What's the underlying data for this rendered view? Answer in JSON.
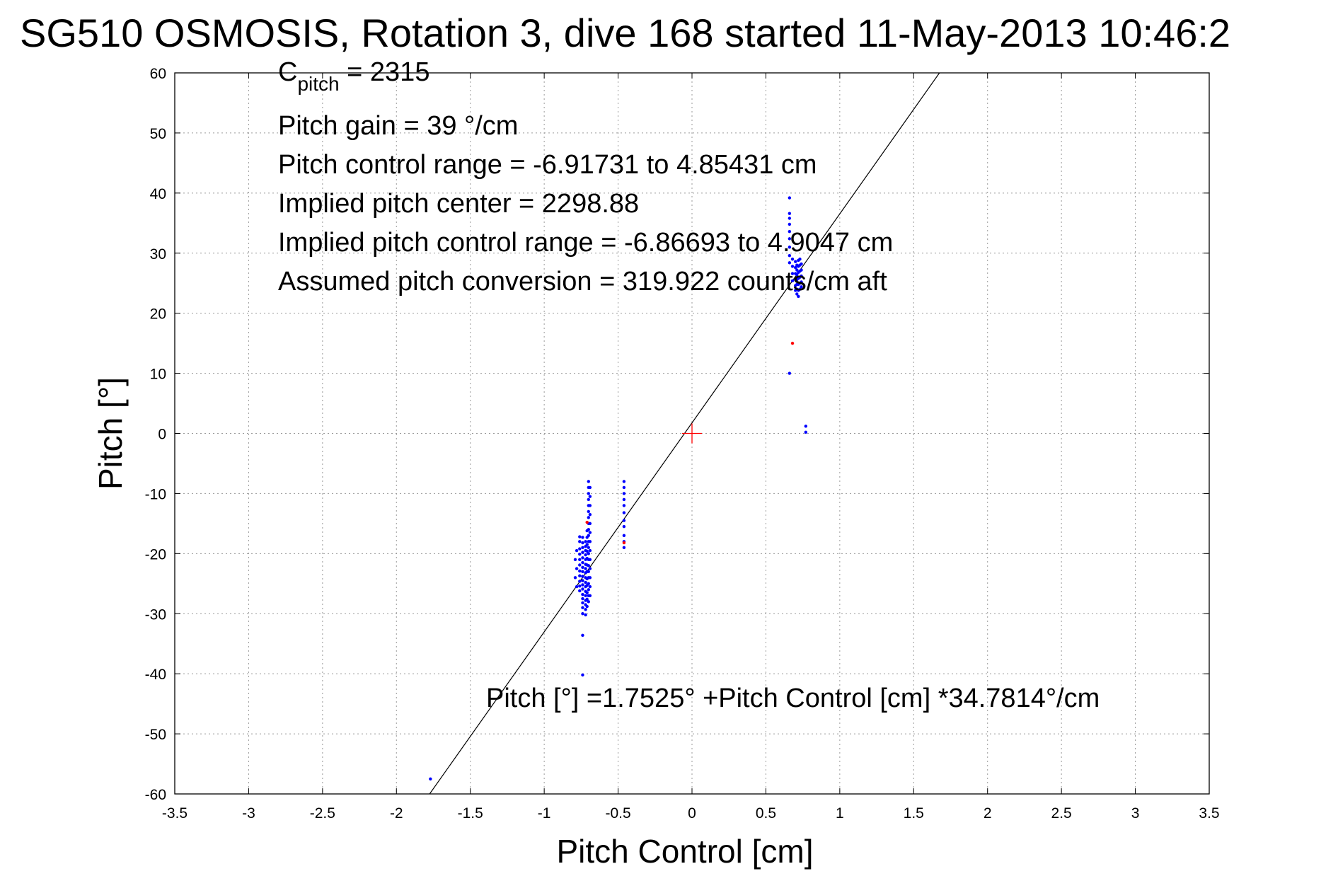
{
  "chart_data": {
    "type": "scatter",
    "title": "SG510 OSMOSIS, Rotation 3, dive 168 started 11-May-2013 10:46:2",
    "xlabel": "Pitch Control [cm]",
    "ylabel": "Pitch [°]",
    "xlim": [
      -3.5,
      3.5
    ],
    "ylim": [
      -60,
      60
    ],
    "xticks": [
      -3.5,
      -3,
      -2.5,
      -2,
      -1.5,
      -1,
      -0.5,
      0,
      0.5,
      1,
      1.5,
      2,
      2.5,
      3,
      3.5
    ],
    "yticks": [
      -60,
      -50,
      -40,
      -30,
      -20,
      -10,
      0,
      10,
      20,
      30,
      40,
      50,
      60
    ],
    "xtick_labels": [
      "-3.5",
      "-3",
      "-2.5",
      "-2",
      "-1.5",
      "-1",
      "-0.5",
      "0",
      "0.5",
      "1",
      "1.5",
      "2",
      "2.5",
      "3",
      "3.5"
    ],
    "ytick_labels": [
      "-60",
      "-50",
      "-40",
      "-30",
      "-20",
      "-10",
      "0",
      "10",
      "20",
      "30",
      "40",
      "50",
      "60"
    ],
    "grid": true,
    "annotations": {
      "cpitch_main": "C",
      "cpitch_sub": "pitch",
      "cpitch_value": " = 2315",
      "lines": [
        "Pitch gain = 39 °/cm",
        "Pitch control range = -6.91731 to 4.85431 cm",
        "Implied pitch center = 2298.88",
        "Implied pitch control range = -6.86693 to 4.9047 cm",
        "Assumed pitch conversion = 319.922 counts/cm aft"
      ],
      "fit_equation": "Pitch [°] =1.7525° +Pitch Control [cm] *34.7814°/cm"
    },
    "fit_line": {
      "intercept": 1.7525,
      "slope": 34.7814,
      "color": "#000000"
    },
    "origin_marker": {
      "x": 0,
      "y": 0,
      "color": "#ff0000"
    },
    "colors": {
      "main": "#0000ff",
      "flagged": "#ff0000"
    },
    "series": [
      {
        "color": "#0000ff",
        "points": [
          [
            -1.77,
            -57.5
          ],
          [
            -0.74,
            -40.2
          ],
          [
            -0.74,
            -33.6
          ],
          [
            -0.74,
            -30.0
          ],
          [
            -0.74,
            -29.0
          ],
          [
            -0.74,
            -28.2
          ],
          [
            -0.74,
            -27.5
          ],
          [
            -0.74,
            -26.8
          ],
          [
            -0.74,
            -25.9
          ],
          [
            -0.74,
            -25.2
          ],
          [
            -0.74,
            -24.5
          ],
          [
            -0.74,
            -23.8
          ],
          [
            -0.74,
            -23.0
          ],
          [
            -0.74,
            -22.3
          ],
          [
            -0.74,
            -21.5
          ],
          [
            -0.74,
            -20.7
          ],
          [
            -0.74,
            -19.8
          ],
          [
            -0.74,
            -19.0
          ],
          [
            -0.74,
            -18.2
          ],
          [
            -0.74,
            -17.3
          ],
          [
            -0.76,
            -26.2
          ],
          [
            -0.76,
            -25.4
          ],
          [
            -0.76,
            -24.6
          ],
          [
            -0.76,
            -23.7
          ],
          [
            -0.76,
            -22.9
          ],
          [
            -0.76,
            -21.9
          ],
          [
            -0.76,
            -21.0
          ],
          [
            -0.76,
            -20.1
          ],
          [
            -0.76,
            -19.2
          ],
          [
            -0.76,
            -18.0
          ],
          [
            -0.76,
            -17.2
          ],
          [
            -0.72,
            -30.2
          ],
          [
            -0.72,
            -29.3
          ],
          [
            -0.72,
            -28.5
          ],
          [
            -0.72,
            -27.8
          ],
          [
            -0.72,
            -27.0
          ],
          [
            -0.72,
            -26.3
          ],
          [
            -0.72,
            -25.5
          ],
          [
            -0.72,
            -24.8
          ],
          [
            -0.72,
            -24.0
          ],
          [
            -0.72,
            -23.2
          ],
          [
            -0.72,
            -22.5
          ],
          [
            -0.72,
            -21.8
          ],
          [
            -0.72,
            -21.0
          ],
          [
            -0.72,
            -20.2
          ],
          [
            -0.72,
            -19.5
          ],
          [
            -0.72,
            -18.8
          ],
          [
            -0.72,
            -18.0
          ],
          [
            -0.71,
            -28.8
          ],
          [
            -0.71,
            -27.6
          ],
          [
            -0.71,
            -26.5
          ],
          [
            -0.71,
            -25.3
          ],
          [
            -0.71,
            -24.2
          ],
          [
            -0.71,
            -23.0
          ],
          [
            -0.71,
            -21.9
          ],
          [
            -0.71,
            -20.8
          ],
          [
            -0.71,
            -19.6
          ],
          [
            -0.71,
            -18.5
          ],
          [
            -0.71,
            -17.3
          ],
          [
            -0.71,
            -16.2
          ],
          [
            -0.7,
            -28.0
          ],
          [
            -0.7,
            -27.0
          ],
          [
            -0.7,
            -26.0
          ],
          [
            -0.7,
            -25.0
          ],
          [
            -0.7,
            -24.0
          ],
          [
            -0.7,
            -23.0
          ],
          [
            -0.7,
            -22.0
          ],
          [
            -0.7,
            -21.0
          ],
          [
            -0.7,
            -20.0
          ],
          [
            -0.7,
            -19.0
          ],
          [
            -0.7,
            -18.0
          ],
          [
            -0.7,
            -17.0
          ],
          [
            -0.7,
            -16.0
          ],
          [
            -0.7,
            -15.0
          ],
          [
            -0.7,
            -14.0
          ],
          [
            -0.7,
            -13.0
          ],
          [
            -0.7,
            -12.0
          ],
          [
            -0.7,
            -11.0
          ],
          [
            -0.7,
            -10.0
          ],
          [
            -0.7,
            -9.0
          ],
          [
            -0.7,
            -8.0
          ],
          [
            -0.69,
            -27.0
          ],
          [
            -0.69,
            -25.5
          ],
          [
            -0.69,
            -24.0
          ],
          [
            -0.69,
            -22.5
          ],
          [
            -0.69,
            -21.0
          ],
          [
            -0.69,
            -19.5
          ],
          [
            -0.69,
            -18.0
          ],
          [
            -0.69,
            -16.5
          ],
          [
            -0.69,
            -15.0
          ],
          [
            -0.69,
            -13.5
          ],
          [
            -0.69,
            -12.0
          ],
          [
            -0.69,
            -10.5
          ],
          [
            -0.69,
            -9.0
          ],
          [
            -0.78,
            -25.5
          ],
          [
            -0.78,
            -22.5
          ],
          [
            -0.78,
            -19.5
          ],
          [
            -0.79,
            -24.0
          ],
          [
            -0.79,
            -21.0
          ],
          [
            -0.46,
            -19.0
          ],
          [
            -0.46,
            -18.0
          ],
          [
            -0.46,
            -17.0
          ],
          [
            -0.46,
            -15.5
          ],
          [
            -0.46,
            -14.5
          ],
          [
            -0.46,
            -13.2
          ],
          [
            -0.46,
            -12.0
          ],
          [
            -0.46,
            -11.0
          ],
          [
            -0.46,
            -10.0
          ],
          [
            -0.46,
            -9.0
          ],
          [
            -0.46,
            -8.0
          ],
          [
            0.66,
            39.2
          ],
          [
            0.66,
            36.6
          ],
          [
            0.66,
            35.8
          ],
          [
            0.66,
            34.8
          ],
          [
            0.66,
            33.6
          ],
          [
            0.66,
            32.4
          ],
          [
            0.66,
            31.0
          ],
          [
            0.66,
            29.6
          ],
          [
            0.66,
            28.4
          ],
          [
            0.66,
            10.0
          ],
          [
            0.68,
            29.0
          ],
          [
            0.68,
            27.8
          ],
          [
            0.68,
            26.6
          ],
          [
            0.68,
            25.4
          ],
          [
            0.7,
            28.6
          ],
          [
            0.7,
            27.6
          ],
          [
            0.7,
            26.6
          ],
          [
            0.7,
            25.6
          ],
          [
            0.7,
            24.6
          ],
          [
            0.7,
            23.8
          ],
          [
            0.71,
            28.0
          ],
          [
            0.71,
            27.2
          ],
          [
            0.71,
            26.4
          ],
          [
            0.71,
            25.6
          ],
          [
            0.71,
            24.8
          ],
          [
            0.71,
            24.0
          ],
          [
            0.71,
            23.2
          ],
          [
            0.72,
            28.8
          ],
          [
            0.72,
            27.8
          ],
          [
            0.72,
            26.8
          ],
          [
            0.72,
            25.8
          ],
          [
            0.72,
            24.8
          ],
          [
            0.72,
            23.8
          ],
          [
            0.72,
            22.8
          ],
          [
            0.73,
            29.0
          ],
          [
            0.73,
            28.0
          ],
          [
            0.73,
            27.0
          ],
          [
            0.73,
            26.0
          ],
          [
            0.73,
            25.0
          ],
          [
            0.73,
            24.0
          ],
          [
            0.74,
            28.2
          ],
          [
            0.74,
            27.2
          ],
          [
            0.74,
            26.2
          ],
          [
            0.74,
            25.2
          ],
          [
            0.74,
            24.4
          ],
          [
            0.77,
            1.2
          ],
          [
            0.77,
            0.2
          ]
        ]
      },
      {
        "color": "#ff0000",
        "points": [
          [
            -0.71,
            -14.8
          ],
          [
            -0.46,
            -18.2
          ],
          [
            0.68,
            15.0
          ]
        ]
      }
    ]
  }
}
